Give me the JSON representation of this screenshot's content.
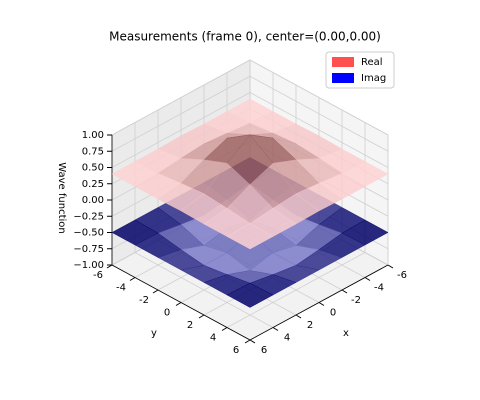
{
  "chart_data": {
    "type": "surface3d",
    "title": "Measurements (frame 0), center=(0.00,0.00)",
    "xlabel": "x",
    "ylabel": "y",
    "zlabel": "Wave function",
    "x": [
      -6,
      -4,
      -2,
      0,
      2,
      4,
      6
    ],
    "y": [
      -6,
      -4,
      -2,
      0,
      2,
      4,
      6
    ],
    "xlim": [
      -6,
      6
    ],
    "ylim": [
      -6,
      6
    ],
    "zlim": [
      -1,
      1
    ],
    "xticks": [
      -6,
      -4,
      -2,
      0,
      2,
      4,
      6
    ],
    "yticks": [
      -6,
      -4,
      -2,
      0,
      2,
      4,
      6
    ],
    "zticks": [
      {
        "value": -1,
        "label": "−1.00"
      },
      {
        "value": -0.75,
        "label": "−0.75"
      },
      {
        "value": -0.5,
        "label": "−0.50"
      },
      {
        "value": -0.25,
        "label": "−0.25"
      },
      {
        "value": 0,
        "label": "0.00"
      },
      {
        "value": 0.25,
        "label": "0.25"
      },
      {
        "value": 0.5,
        "label": "0.50"
      },
      {
        "value": 0.75,
        "label": "0.75"
      },
      {
        "value": 1,
        "label": "1.00"
      }
    ],
    "grid": true,
    "legend": "upper right",
    "series": [
      {
        "name": "Real",
        "color": "#ff5050",
        "z": [
          [
            0.4,
            0.4,
            0.4,
            0.41,
            0.4,
            0.4,
            0.4
          ],
          [
            0.4,
            0.41,
            0.45,
            0.48,
            0.45,
            0.41,
            0.4
          ],
          [
            0.4,
            0.45,
            0.62,
            0.76,
            0.62,
            0.45,
            0.4
          ],
          [
            0.41,
            0.48,
            0.76,
            1.0,
            0.76,
            0.48,
            0.41
          ],
          [
            0.4,
            0.45,
            0.62,
            0.76,
            0.62,
            0.45,
            0.4
          ],
          [
            0.4,
            0.41,
            0.45,
            0.48,
            0.45,
            0.41,
            0.4
          ],
          [
            0.4,
            0.4,
            0.4,
            0.41,
            0.4,
            0.4,
            0.4
          ]
        ]
      },
      {
        "name": "Imag",
        "color": "#0000ff",
        "z": [
          [
            -0.5,
            -0.5,
            -0.5,
            -0.5,
            -0.5,
            -0.5,
            -0.5
          ],
          [
            -0.5,
            -0.51,
            -0.57,
            -0.62,
            -0.57,
            -0.51,
            -0.5
          ],
          [
            -0.5,
            -0.57,
            -0.7,
            -0.62,
            -0.7,
            -0.57,
            -0.5
          ],
          [
            -0.5,
            -0.62,
            -0.62,
            -0.5,
            -0.62,
            -0.62,
            -0.5
          ],
          [
            -0.5,
            -0.57,
            -0.7,
            -0.62,
            -0.7,
            -0.57,
            -0.5
          ],
          [
            -0.5,
            -0.51,
            -0.57,
            -0.62,
            -0.57,
            -0.51,
            -0.5
          ],
          [
            -0.5,
            -0.5,
            -0.5,
            -0.5,
            -0.5,
            -0.5,
            -0.5
          ]
        ]
      }
    ]
  }
}
